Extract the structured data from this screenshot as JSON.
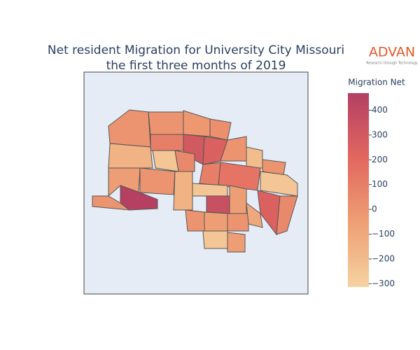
{
  "chart_data": {
    "type": "choropleth",
    "title": [
      "Net resident Migration for University City Missouri",
      "the first three months of 2019"
    ],
    "colorbar_title": "Migration Net",
    "colorscale": [
      "#f6d2a0",
      "#ee9f74",
      "#e2675f",
      "#b33f62"
    ],
    "zlim": [
      -313,
      469
    ],
    "zticks": [
      {
        "value": -300,
        "label": "−300"
      },
      {
        "value": -200,
        "label": "−200"
      },
      {
        "value": -100,
        "label": "−100"
      },
      0,
      100,
      200,
      300,
      400
    ],
    "values": [
      0,
      0,
      -20,
      20,
      100,
      300,
      250,
      0,
      -150,
      -250,
      50,
      -200,
      0,
      -50,
      0,
      150,
      100,
      -250,
      0,
      460,
      -150,
      -250,
      350,
      -50,
      250,
      50,
      0,
      -50,
      0,
      -100,
      -250,
      -50
    ]
  },
  "logo": {
    "name": "ADVAN",
    "tagline": "Research through Technology"
  }
}
